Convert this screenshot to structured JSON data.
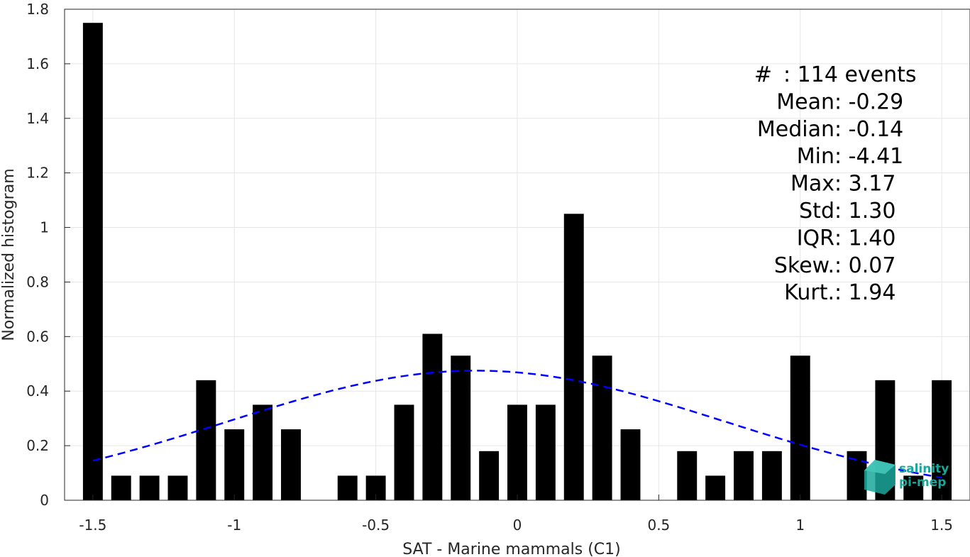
{
  "chart_data": {
    "type": "bar",
    "xlabel": "SAT - Marine mammals (C1)",
    "ylabel": "Normalized histogram",
    "xlim": [
      -1.6,
      1.6
    ],
    "ylim": [
      0,
      1.8
    ],
    "xticks": [
      -1.5,
      -1,
      -0.5,
      0,
      0.5,
      1,
      1.5
    ],
    "xtick_labels": [
      "-1.5",
      "-1",
      "-0.5",
      "0",
      "0.5",
      "1",
      "1.5"
    ],
    "yticks": [
      0,
      0.2,
      0.4,
      0.6,
      0.8,
      1,
      1.2,
      1.4,
      1.6,
      1.8
    ],
    "ytick_labels": [
      "0",
      "0.2",
      "0.4",
      "0.6",
      "0.8",
      "1",
      "1.2",
      "1.4",
      "1.6",
      "1.8"
    ],
    "grid": true,
    "bar_color": "#000000",
    "bar_width": 0.07,
    "bars": {
      "x": [
        -1.5,
        -1.4,
        -1.3,
        -1.2,
        -1.1,
        -1.0,
        -0.9,
        -0.8,
        -0.7,
        -0.6,
        -0.5,
        -0.4,
        -0.3,
        -0.2,
        -0.1,
        0.0,
        0.1,
        0.2,
        0.3,
        0.4,
        0.5,
        0.6,
        0.7,
        0.8,
        0.9,
        1.0,
        1.1,
        1.2,
        1.3,
        1.4,
        1.5
      ],
      "values": [
        1.75,
        0.09,
        0.09,
        0.09,
        0.44,
        0.26,
        0.35,
        0.26,
        0,
        0.09,
        0.09,
        0.35,
        0.61,
        0.53,
        0.18,
        0.35,
        0.35,
        1.05,
        0.53,
        0.26,
        0,
        0.18,
        0.09,
        0.18,
        0.18,
        0.53,
        0,
        0.18,
        0.44,
        0.09,
        0.44
      ]
    },
    "fit_curve": {
      "style": "dashed",
      "color": "#0000ff",
      "mean": -0.145,
      "std": 0.88,
      "peak": 0.475,
      "x_range": [
        -1.5,
        1.5
      ]
    },
    "stats": [
      {
        "label": "#",
        "sep": " : ",
        "value": "114 events"
      },
      {
        "label": "Mean",
        "sep": " : ",
        "value": "-0.29"
      },
      {
        "label": "Median",
        "sep": " : ",
        "value": "-0.14"
      },
      {
        "label": "Min",
        "sep": " : ",
        "value": "-4.41"
      },
      {
        "label": "Max",
        "sep": " : ",
        "value": "3.17"
      },
      {
        "label": "Std",
        "sep": " : ",
        "value": "1.30"
      },
      {
        "label": "IQR",
        "sep": " : ",
        "value": "1.40"
      },
      {
        "label": "Skew.",
        "sep": " : ",
        "value": "0.07"
      },
      {
        "label": "Kurt.",
        "sep": " : ",
        "value": "1.94"
      }
    ]
  },
  "logo": {
    "line1": "salinity",
    "line2": "pi-mep",
    "color": "#1aa79a"
  }
}
